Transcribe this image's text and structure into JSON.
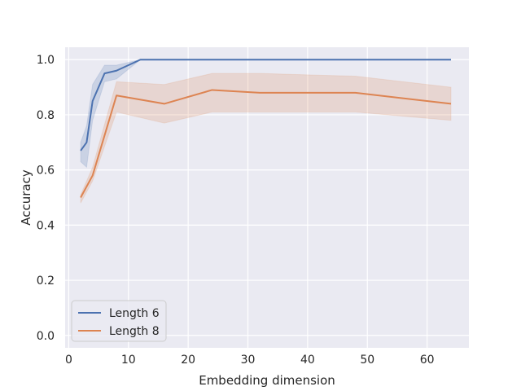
{
  "chart_data": {
    "type": "line",
    "xlabel": "Embedding dimension",
    "ylabel": "Accuracy",
    "xlim": [
      -0.6,
      67
    ],
    "ylim": [
      -0.045,
      1.045
    ],
    "xticks": [
      0,
      10,
      20,
      30,
      40,
      50,
      60
    ],
    "yticks": [
      0.0,
      0.2,
      0.4,
      0.6,
      0.8,
      1.0
    ],
    "xtick_labels": [
      "0",
      "10",
      "20",
      "30",
      "40",
      "50",
      "60"
    ],
    "ytick_labels": [
      "0.0",
      "0.2",
      "0.4",
      "0.6",
      "0.8",
      "1.0"
    ],
    "grid": true,
    "background": "#eaeaf2",
    "legend": "bottom-left",
    "series": [
      {
        "name": "Length 6",
        "color": "#4c72b0",
        "x": [
          2,
          3,
          4,
          6,
          8,
          12,
          16,
          24,
          32,
          48,
          64
        ],
        "y": [
          0.67,
          0.7,
          0.85,
          0.95,
          0.96,
          1.0,
          1.0,
          1.0,
          1.0,
          1.0,
          1.0
        ],
        "ci_low": [
          0.63,
          0.61,
          0.78,
          0.92,
          0.93,
          1.0,
          1.0,
          1.0,
          1.0,
          1.0,
          1.0
        ],
        "ci_high": [
          0.7,
          0.76,
          0.91,
          0.98,
          0.98,
          1.0,
          1.0,
          1.0,
          1.0,
          1.0,
          1.0
        ]
      },
      {
        "name": "Length 8",
        "color": "#dd8452",
        "x": [
          2,
          4,
          8,
          16,
          24,
          32,
          48,
          64
        ],
        "y": [
          0.5,
          0.58,
          0.87,
          0.84,
          0.89,
          0.88,
          0.88,
          0.84
        ],
        "ci_low": [
          0.48,
          0.56,
          0.81,
          0.77,
          0.81,
          0.81,
          0.81,
          0.78
        ],
        "ci_high": [
          0.51,
          0.61,
          0.92,
          0.91,
          0.95,
          0.95,
          0.94,
          0.9
        ]
      }
    ]
  }
}
